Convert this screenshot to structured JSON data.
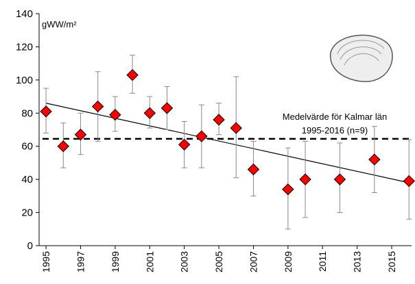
{
  "chart_data": {
    "type": "scatter",
    "y_unit_label": "gWW/m²",
    "x": [
      1995,
      1996,
      1997,
      1998,
      1999,
      2000,
      2001,
      2002,
      2003,
      2004,
      2005,
      2006,
      2007,
      2009,
      2010,
      2012,
      2014,
      2016
    ],
    "series": [
      {
        "color": "#ff0000",
        "values": [
          81,
          60,
          67,
          84,
          79,
          103,
          80,
          83,
          61,
          66,
          76,
          71,
          46,
          34,
          40,
          40,
          52,
          39
        ],
        "low": [
          68,
          47,
          55,
          63,
          69,
          92,
          71,
          70,
          47,
          47,
          67,
          41,
          30,
          10,
          17,
          20,
          32,
          16
        ],
        "high": [
          95,
          74,
          80,
          105,
          90,
          115,
          90,
          96,
          75,
          85,
          86,
          102,
          63,
          59,
          63,
          62,
          72,
          64
        ]
      }
    ],
    "trend": {
      "x": [
        1995,
        2016
      ],
      "values": [
        86,
        38
      ]
    },
    "reference_line": {
      "value": 64.5,
      "labels": [
        "Medelvärde för Kalmar län",
        "1995-2016 (n=9)"
      ]
    },
    "xlim": [
      1994.6,
      2016.15
    ],
    "xticks": [
      1995,
      1997,
      1999,
      2001,
      2003,
      2005,
      2007,
      2009,
      2011,
      2013,
      2015
    ],
    "ylim": [
      0,
      140
    ],
    "yticks": [
      0,
      20,
      40,
      60,
      80,
      100,
      120,
      140
    ]
  }
}
